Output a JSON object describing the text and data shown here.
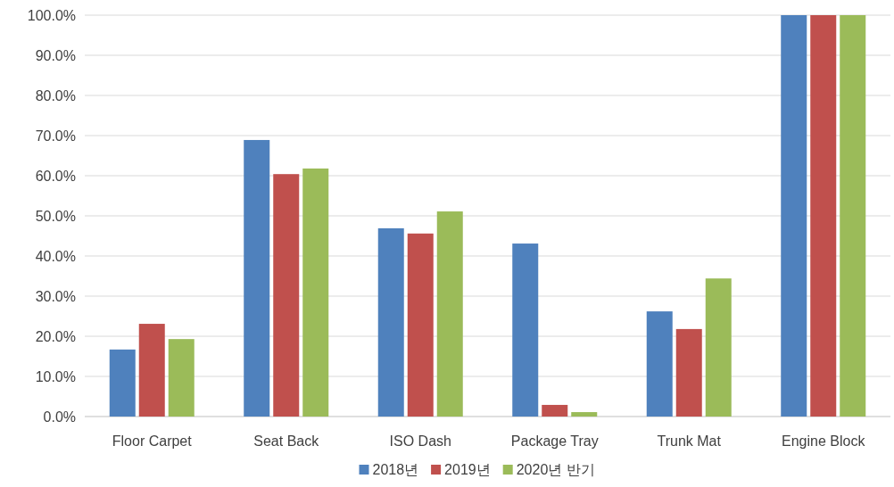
{
  "chart_data": {
    "type": "bar",
    "categories": [
      "Floor Carpet",
      "Seat Back",
      "ISO Dash",
      "Package Tray",
      "Trunk Mat",
      "Engine Block"
    ],
    "series": [
      {
        "name": "2018년",
        "color": "#4f81bd",
        "values": [
          16.7,
          68.9,
          46.9,
          43.1,
          26.2,
          100
        ]
      },
      {
        "name": "2019년",
        "color": "#c0504d",
        "values": [
          23.1,
          60.4,
          45.6,
          2.9,
          21.8,
          100
        ]
      },
      {
        "name": "2020년 반기",
        "color": "#9bbb59",
        "values": [
          19.3,
          61.8,
          51.1,
          1.1,
          34.4,
          100
        ]
      }
    ],
    "ylim": [
      0,
      100
    ],
    "yticks": [
      {
        "value": 0,
        "label": "0.0%"
      },
      {
        "value": 10,
        "label": "10.0%"
      },
      {
        "value": 20,
        "label": "20.0%"
      },
      {
        "value": 30,
        "label": "30.0%"
      },
      {
        "value": 40,
        "label": "40.0%"
      },
      {
        "value": 50,
        "label": "50.0%"
      },
      {
        "value": 60,
        "label": "60.0%"
      },
      {
        "value": 70,
        "label": "70.0%"
      },
      {
        "value": 80,
        "label": "80.0%"
      },
      {
        "value": 90,
        "label": "90.0%"
      },
      {
        "value": 100,
        "label": "100.0%"
      }
    ],
    "grid": "y",
    "legend": "bottom"
  }
}
